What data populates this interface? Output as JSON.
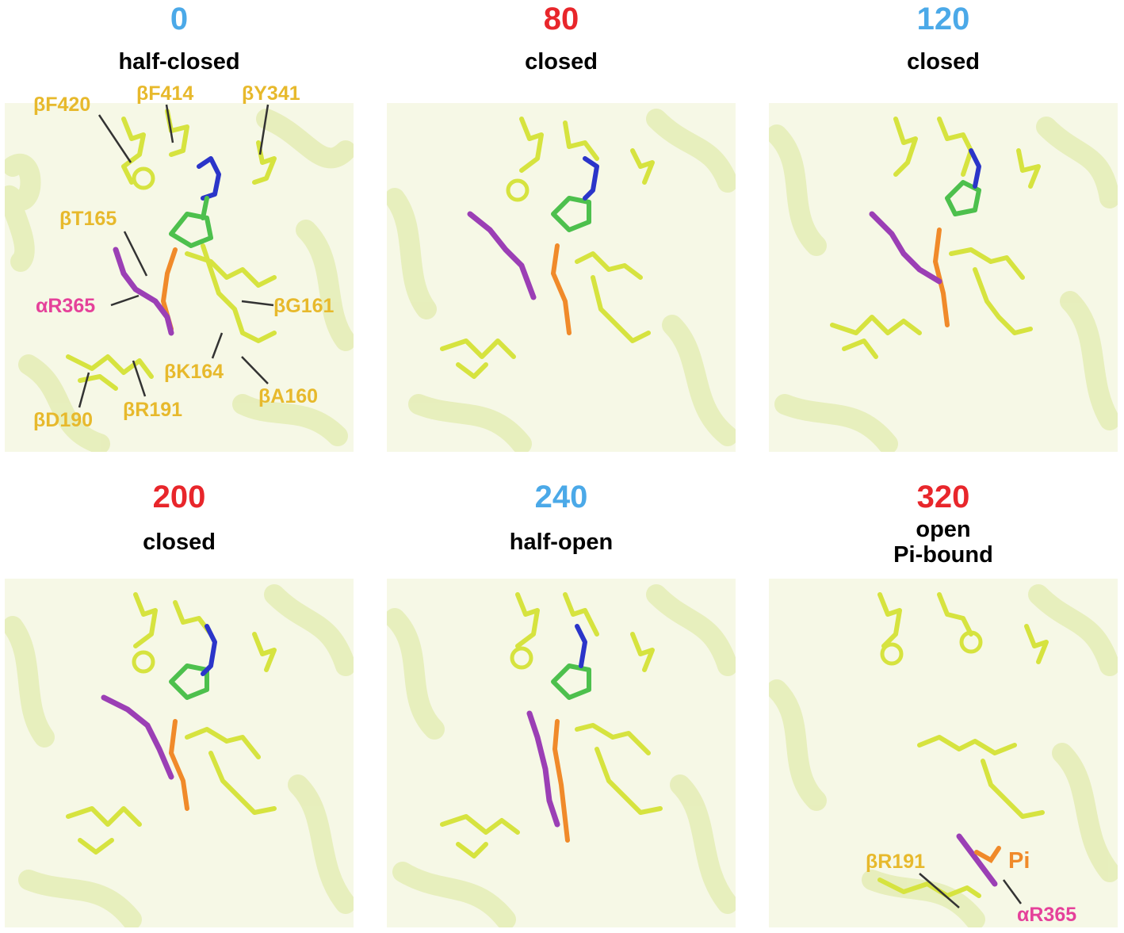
{
  "colors": {
    "angle_blue": "#4BA9E8",
    "angle_red": "#E8262B",
    "label_yellow": "#E7B92C",
    "label_magenta": "#E5419A",
    "label_orange": "#F08A2A",
    "ribbon": "#EEF3C8",
    "stick_yellow": "#D6E33F",
    "arginine": "#9B3FB5",
    "nucleotide_green": "#4DC04D",
    "nitrogen_blue": "#2B35C9",
    "oxygen_red": "#E5332A",
    "phosphate_orange": "#F08A2A"
  },
  "panels": [
    {
      "angle": "0",
      "angle_color": "#4BA9E8",
      "state": "half-closed"
    },
    {
      "angle": "80",
      "angle_color": "#E8262B",
      "state": "closed"
    },
    {
      "angle": "120",
      "angle_color": "#4BA9E8",
      "state": "closed"
    },
    {
      "angle": "200",
      "angle_color": "#E8262B",
      "state": "closed"
    },
    {
      "angle": "240",
      "angle_color": "#4BA9E8",
      "state": "half-open"
    },
    {
      "angle": "320",
      "angle_color": "#E8262B",
      "state": "open",
      "state2": "Pi-bound"
    }
  ],
  "residue_labels": {
    "bF420": "βF420",
    "bF414": "βF414",
    "bY341": "βY341",
    "bT165": "βT165",
    "aR365": "αR365",
    "bG161": "βG161",
    "bK164": "βK164",
    "bA160": "βA160",
    "bR191": "βR191",
    "bD190": "βD190",
    "p6_bR191": "βR191",
    "p6_Pi": "Pi",
    "p6_aR365": "αR365"
  }
}
